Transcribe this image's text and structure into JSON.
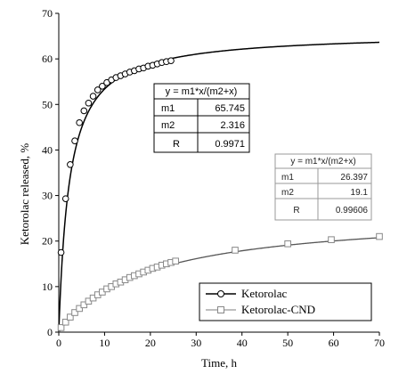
{
  "chart_data": {
    "type": "scatter",
    "xlabel": "Time, h",
    "ylabel": "Ketorolac released, %",
    "xlim": [
      0,
      70
    ],
    "ylim": [
      0,
      70
    ],
    "x_ticks": [
      "0",
      "10",
      "20",
      "30",
      "40",
      "50",
      "60",
      "70"
    ],
    "y_ticks": [
      "0",
      "10",
      "20",
      "30",
      "40",
      "50",
      "60",
      "70"
    ],
    "grid": false,
    "legend_placement": "bottom-right",
    "series": [
      {
        "name": "Ketorolac",
        "marker": "circle",
        "line": "solid",
        "color": "#000000",
        "fit": {
          "m1": 65.745,
          "m2": 2.316
        },
        "points": [
          [
            0.5,
            17.5
          ],
          [
            1.5,
            29.3
          ],
          [
            2.5,
            36.8
          ],
          [
            3.5,
            42.0
          ],
          [
            4.5,
            46.0
          ],
          [
            5.5,
            48.6
          ],
          [
            6.5,
            50.3
          ],
          [
            7.5,
            51.8
          ],
          [
            8.5,
            53.2
          ],
          [
            9.5,
            54.0
          ],
          [
            10.5,
            54.8
          ],
          [
            11.5,
            55.4
          ],
          [
            12.5,
            55.9
          ],
          [
            13.5,
            56.3
          ],
          [
            14.5,
            56.7
          ],
          [
            15.5,
            57.1
          ],
          [
            16.5,
            57.4
          ],
          [
            17.5,
            57.8
          ],
          [
            18.5,
            58.0
          ],
          [
            19.5,
            58.4
          ],
          [
            20.5,
            58.6
          ],
          [
            21.5,
            58.9
          ],
          [
            22.5,
            59.2
          ],
          [
            23.5,
            59.4
          ],
          [
            24.5,
            59.6
          ]
        ]
      },
      {
        "name": "Ketorolac-CND",
        "marker": "square",
        "line": "solid",
        "color": "#000000",
        "fit": {
          "m1": 26.397,
          "m2": 19.1
        },
        "points": [
          [
            0.5,
            1.0
          ],
          [
            1.5,
            2.2
          ],
          [
            2.5,
            3.3
          ],
          [
            3.5,
            4.3
          ],
          [
            4.5,
            5.2
          ],
          [
            5.5,
            6.0
          ],
          [
            6.5,
            6.8
          ],
          [
            7.5,
            7.5
          ],
          [
            8.5,
            8.2
          ],
          [
            9.5,
            8.8
          ],
          [
            10.5,
            9.5
          ],
          [
            11.5,
            10.0
          ],
          [
            12.5,
            10.6
          ],
          [
            13.5,
            11.0
          ],
          [
            14.5,
            11.5
          ],
          [
            15.5,
            12.0
          ],
          [
            16.5,
            12.4
          ],
          [
            17.5,
            12.8
          ],
          [
            18.5,
            13.2
          ],
          [
            19.5,
            13.6
          ],
          [
            20.5,
            14.0
          ],
          [
            21.5,
            14.3
          ],
          [
            22.5,
            14.7
          ],
          [
            23.5,
            15.0
          ],
          [
            24.5,
            15.3
          ],
          [
            25.5,
            15.6
          ],
          [
            38.5,
            18.0
          ],
          [
            50.0,
            19.4
          ],
          [
            59.5,
            20.3
          ],
          [
            70.0,
            21.0
          ]
        ]
      }
    ],
    "fit_tables": [
      {
        "equation": "y = m1*x/(m2+x)",
        "rows": [
          [
            "m1",
            "65.745"
          ],
          [
            "m2",
            "2.316"
          ],
          [
            "R",
            "0.9971"
          ]
        ]
      },
      {
        "equation": "y = m1*x/(m2+x)",
        "rows": [
          [
            "m1",
            "26.397"
          ],
          [
            "m2",
            "19.1"
          ],
          [
            "R",
            "0.99606"
          ]
        ]
      }
    ]
  }
}
